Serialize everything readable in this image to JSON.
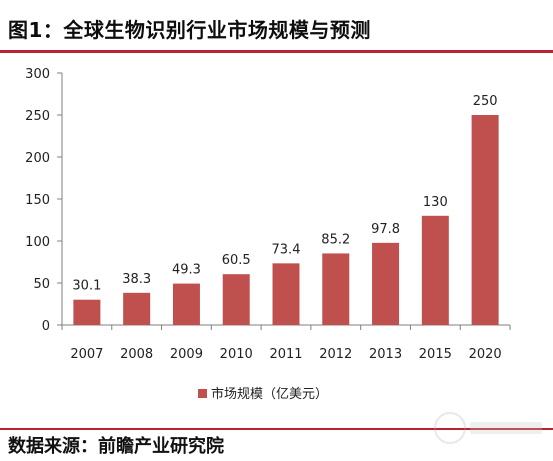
{
  "header": {
    "title": "图1：全球生物识别行业市场规模与预测"
  },
  "chart_data": {
    "type": "bar",
    "categories": [
      "2007",
      "2008",
      "2009",
      "2010",
      "2011",
      "2012",
      "2013",
      "2015",
      "2020"
    ],
    "series": [
      {
        "name": "市场规模（亿美元）",
        "values": [
          30.1,
          38.3,
          49.3,
          60.5,
          73.4,
          85.2,
          97.8,
          130,
          250
        ],
        "labels": [
          "30.1",
          "38.3",
          "49.3",
          "60.5",
          "73.4",
          "85.2",
          "97.8",
          "130",
          "250"
        ]
      }
    ],
    "ylim": [
      0,
      300
    ],
    "yticks": [
      0,
      50,
      100,
      150,
      200,
      250,
      300
    ],
    "grid": false,
    "legend": "bottom",
    "bar_color": "#c0504d"
  },
  "footer": {
    "source": "数据来源：前瞻产业研究院"
  },
  "colors": {
    "accent": "#b8232f",
    "bar": "#c0504d"
  }
}
